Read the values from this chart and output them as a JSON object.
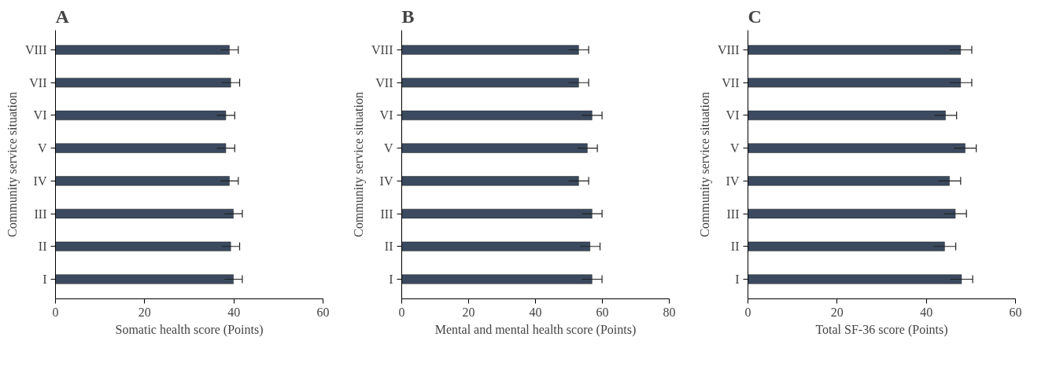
{
  "chart_data": [
    {
      "type": "bar",
      "orientation": "horizontal",
      "title": "A",
      "xlabel": "Somatic health score (Points)",
      "ylabel": "Community service situation",
      "categories": [
        "VIII",
        "VII",
        "VI",
        "V",
        "IV",
        "III",
        "II",
        "I"
      ],
      "color": "#3b4a5f",
      "values": [
        39.0,
        39.3,
        38.2,
        38.2,
        39.0,
        39.9,
        39.3,
        39.9
      ],
      "errors": [
        2,
        2,
        2,
        2,
        2,
        2,
        2,
        2
      ],
      "xlim": [
        0,
        60
      ],
      "xticks": [
        0,
        20,
        40,
        60
      ],
      "grid": false
    },
    {
      "type": "bar",
      "orientation": "horizontal",
      "title": "B",
      "xlabel": "Mental and mental health score (Points)",
      "ylabel": "Community service situation",
      "categories": [
        "VIII",
        "VII",
        "VI",
        "V",
        "IV",
        "III",
        "II",
        "I"
      ],
      "color": "#3b4a5f",
      "values": [
        52.9,
        52.9,
        56.9,
        55.5,
        52.9,
        56.9,
        56.3,
        56.9
      ],
      "errors": [
        3,
        3,
        3,
        3,
        3,
        3,
        3,
        3
      ],
      "xlim": [
        0,
        80
      ],
      "xticks": [
        0,
        20,
        40,
        60,
        80
      ],
      "grid": false
    },
    {
      "type": "bar",
      "orientation": "horizontal",
      "title": "C",
      "xlabel": "Total SF-36 score (Points)",
      "ylabel": "Community service situation",
      "categories": [
        "VIII",
        "VII",
        "VI",
        "V",
        "IV",
        "III",
        "II",
        "I"
      ],
      "color": "#3b4a5f",
      "values": [
        47.7,
        47.7,
        44.3,
        48.7,
        45.2,
        46.5,
        44.1,
        47.9
      ],
      "errors": [
        2.5,
        2.5,
        2.5,
        2.5,
        2.5,
        2.5,
        2.5,
        2.5
      ],
      "xlim": [
        0,
        60
      ],
      "xticks": [
        0,
        20,
        40,
        60
      ],
      "grid": false
    }
  ]
}
